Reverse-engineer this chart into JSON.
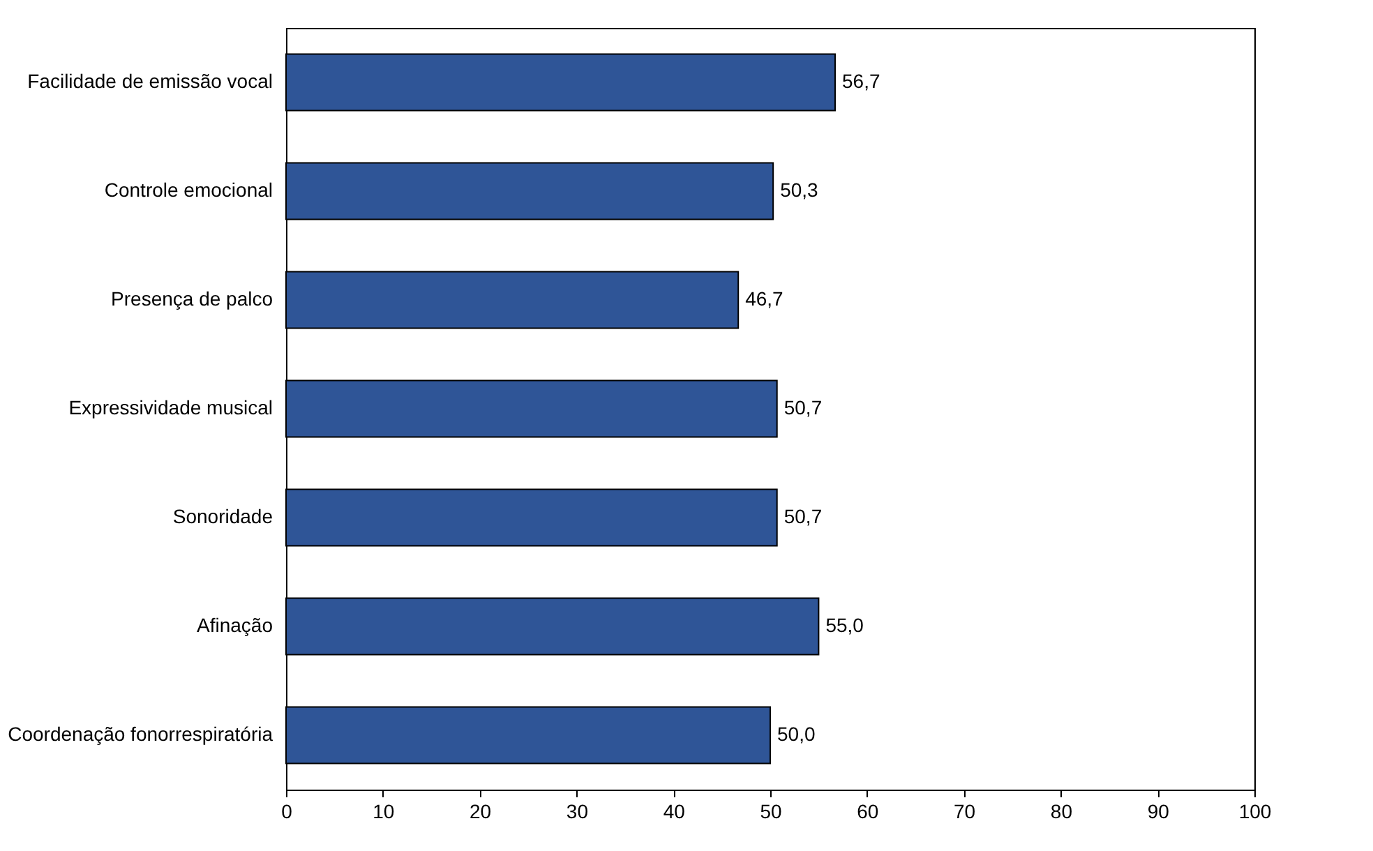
{
  "chart_data": {
    "type": "bar",
    "orientation": "horizontal",
    "categories": [
      "Facilidade de emissão vocal",
      "Controle emocional",
      "Presença de palco",
      "Expressividade musical",
      "Sonoridade",
      "Afinação",
      "Coordenação fonorrespiratória"
    ],
    "values": [
      56.7,
      50.3,
      46.7,
      50.7,
      50.7,
      55.0,
      50.0
    ],
    "value_labels": [
      "56,7",
      "50,3",
      "46,7",
      "50,7",
      "50,7",
      "55,0",
      "50,0"
    ],
    "color": "#2f5597",
    "xlim": [
      0,
      100
    ],
    "xticks": [
      0,
      10,
      20,
      30,
      40,
      50,
      60,
      70,
      80,
      90,
      100
    ],
    "grid": false
  }
}
